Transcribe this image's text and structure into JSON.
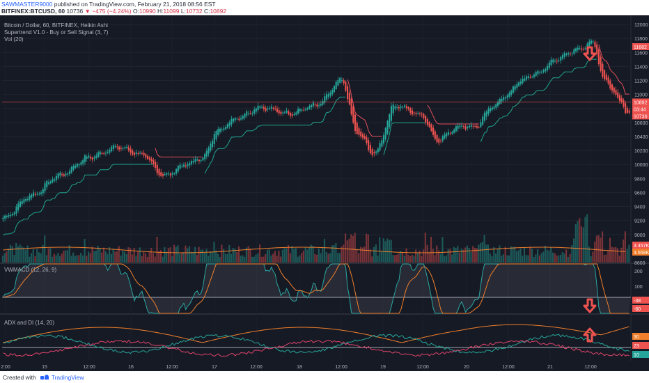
{
  "header": {
    "publisher": "SAWMASTER9000",
    "published_text": "published on TradingView.com, February 21, 2018 08:56 EST",
    "symbol": "BITFINEX:BTCUSD, 60",
    "last": "10736",
    "change": "▼ −475 (−4.24%)",
    "o_label": "O:",
    "o_value": "10990",
    "h_label": "H:",
    "h_value": "11099",
    "l_label": "L:",
    "l_value": "10732",
    "c_label": "C:",
    "c_value": "10892"
  },
  "legend": {
    "main_title": "Bitcoin / Dollar, 60, BITFINEX, Heikin Ashi",
    "supertrend": "Supertrend V1.0 - Buy or Sell Signal (3, 7)",
    "vol": "Vol (20)",
    "vwmacd": "VWMACD (12, 26, 9)",
    "adx": "ADX and DI (14, 20)"
  },
  "price_labels": {
    "supertrend": "11682",
    "current": "10892",
    "countdown": "03:44",
    "close": "10736",
    "vol1": "3.457K",
    "vol2": "3.558K",
    "macd1": "-38",
    "macd2": "-60",
    "adx1": "30",
    "adx2": "23",
    "adx3": "10"
  },
  "colors": {
    "background": "#161a25",
    "up": "#26a69a",
    "down": "#ef5350",
    "supertrend_up": "#1fa58f",
    "supertrend_down": "#e04f5b",
    "macd": "#2aa7a1",
    "signal": "#f07f2b",
    "adx": "#f07f2b",
    "di_plus": "#26a69a",
    "di_minus": "#e0446a"
  },
  "footer": {
    "created_with": "Created with",
    "brand": "TradingView"
  },
  "chart_data": [
    {
      "type": "candlestick",
      "title": "Bitcoin / Dollar, 60, BITFINEX, Heikin Ashi",
      "x_ticks": [
        "2:00",
        "15",
        "12:00",
        "16",
        "12:00",
        "17",
        "12:00",
        "18",
        "12:00",
        "19",
        "12:00",
        "20",
        "12:00",
        "21",
        "12:00"
      ],
      "y_ticks": [
        8600,
        8800,
        9000,
        9200,
        9400,
        9600,
        9800,
        10000,
        10200,
        10400,
        10600,
        10800,
        11000,
        11200,
        11400,
        11600,
        11800,
        12000
      ],
      "ylim": [
        8600,
        12050
      ],
      "anchors_x": [
        0,
        15,
        30,
        45,
        60,
        72,
        85,
        96,
        105,
        113,
        124,
        135,
        150,
        165,
        178,
        186,
        195,
        206,
        220,
        228,
        240,
        248,
        258,
        265,
        272,
        280,
        292,
        302,
        310,
        316,
        325,
        328
      ],
      "anchors_close": [
        9240,
        9560,
        9850,
        10100,
        10250,
        10150,
        9840,
        10000,
        10100,
        10500,
        10680,
        10820,
        10730,
        10850,
        11200,
        10450,
        10150,
        10850,
        10700,
        10350,
        10550,
        10540,
        10850,
        11000,
        11200,
        11300,
        11520,
        11650,
        11740,
        11200,
        10900,
        10736
      ],
      "supertrend_value": 11682
    },
    {
      "type": "bar",
      "title": "Vol (20)",
      "last_values": [
        "3.457K",
        "3.558K"
      ]
    },
    {
      "type": "line",
      "title": "VWMACD (12, 26, 9)",
      "y_ticks": [
        200,
        100
      ],
      "last_values": [
        -38,
        -60
      ]
    },
    {
      "type": "line",
      "title": "ADX and DI (14, 20)",
      "last_values": [
        30,
        23,
        10
      ]
    }
  ]
}
